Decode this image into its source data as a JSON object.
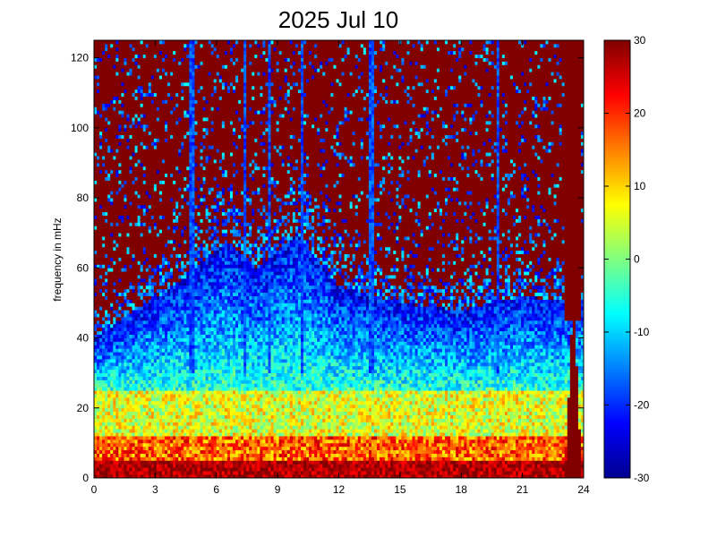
{
  "chart_data": {
    "type": "heatmap",
    "title": "2025 Jul 10",
    "xlabel": "",
    "ylabel": "frequency in mHz",
    "xlim": [
      0,
      24
    ],
    "ylim": [
      0,
      125
    ],
    "x_ticks": [
      "0",
      "3",
      "6",
      "9",
      "12",
      "15",
      "18",
      "21",
      "24"
    ],
    "y_ticks": [
      "0",
      "20",
      "40",
      "60",
      "80",
      "100",
      "120"
    ],
    "colorbar": {
      "range": [
        -30,
        30
      ],
      "ticks": [
        "-30",
        "-20",
        "-10",
        "0",
        "10",
        "20",
        "30"
      ],
      "colormap": "jet",
      "colors": [
        "#00008f",
        "#0000ff",
        "#00ffff",
        "#ffff00",
        "#ff0000",
        "#800000"
      ]
    },
    "grid": false,
    "description_of_field": "Spectral power is near 30 above ~60-70 mHz, falls to about -15 to -25 between 30 and 60 mHz, rises to 0-15 below 25 mHz, and reaches 20-30 below 5 mHz; hours 23-24 show a saturated column at low frequencies.",
    "features": {
      "noise_floor_cutoff_mHz": [
        {
          "hour": 0,
          "value": 40
        },
        {
          "hour": 2,
          "value": 48
        },
        {
          "hour": 4,
          "value": 55
        },
        {
          "hour": 6.5,
          "value": 68
        },
        {
          "hour": 8,
          "value": 60
        },
        {
          "hour": 10,
          "value": 70
        },
        {
          "hour": 12,
          "value": 55
        },
        {
          "hour": 15,
          "value": 50
        },
        {
          "hour": 18,
          "value": 48
        },
        {
          "hour": 21,
          "value": 52
        },
        {
          "hour": 24,
          "value": 50
        }
      ],
      "vertical_streaks_hours": [
        4.8,
        7.4,
        8.6,
        10.2,
        13.6,
        19.8
      ],
      "saturated_band_hours": [
        23.1,
        23.9
      ]
    }
  }
}
